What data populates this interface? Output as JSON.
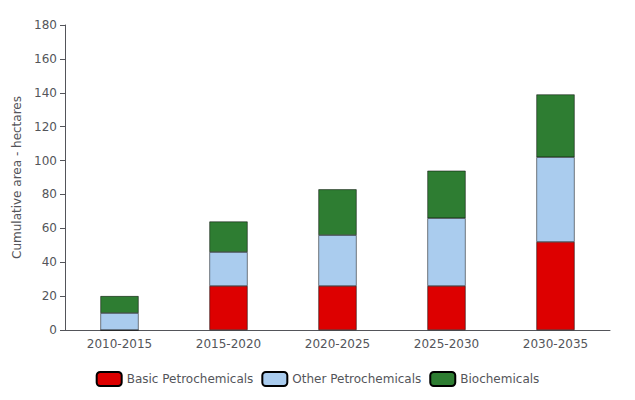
{
  "chart_data": {
    "type": "bar",
    "stacked": true,
    "categories": [
      "2010-2015",
      "2015-2020",
      "2020-2025",
      "2025-2030",
      "2030-2035"
    ],
    "series": [
      {
        "name": "Basic Petrochemicals",
        "color": "#dd0000",
        "values": [
          0,
          26,
          26,
          26,
          52
        ]
      },
      {
        "name": "Other Petrochemicals",
        "color": "#aaccee",
        "values": [
          10,
          20,
          30,
          40,
          50
        ]
      },
      {
        "name": "Biochemicals",
        "color": "#2e7d32",
        "values": [
          10,
          18,
          27,
          28,
          37
        ]
      }
    ],
    "ylabel": "Cumulative area - hectares",
    "ylim": [
      0,
      180
    ],
    "yticks": [
      0,
      20,
      40,
      60,
      80,
      100,
      120,
      140,
      160,
      180
    ],
    "grid": false,
    "legend": "bottom"
  }
}
